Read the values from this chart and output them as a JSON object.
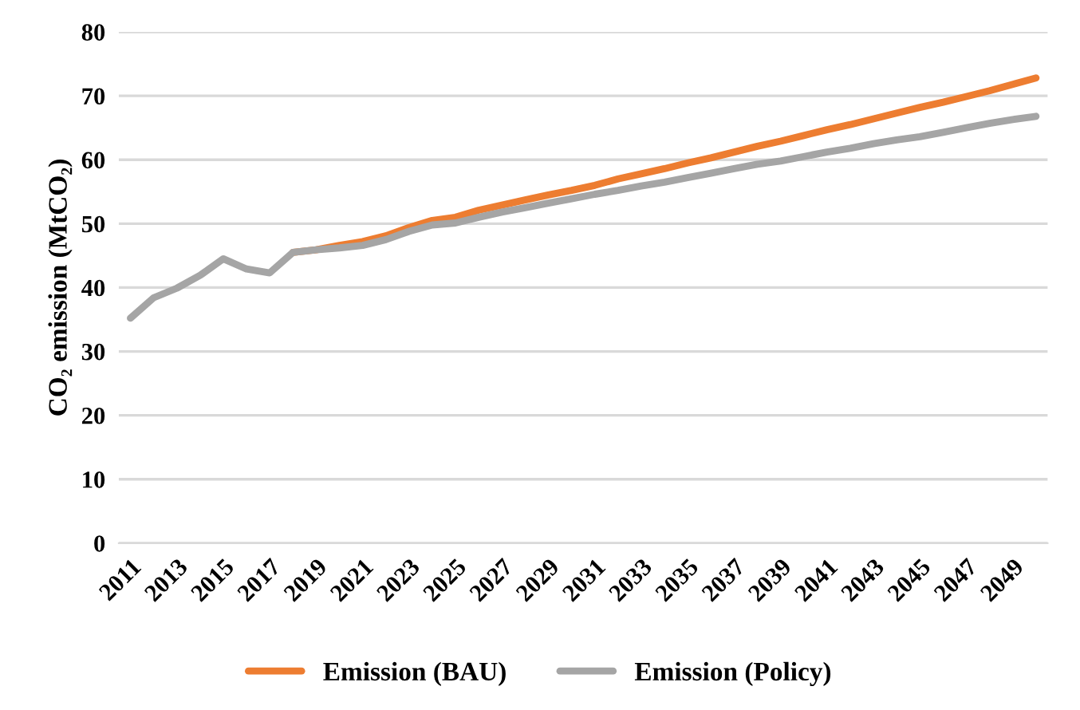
{
  "chart_data": {
    "type": "line",
    "ylabel": "CO₂ emission (MtCO₂)",
    "categories": [
      "2011",
      null,
      "2013",
      null,
      "2015",
      null,
      "2017",
      null,
      "2019",
      null,
      "2021",
      null,
      "2023",
      null,
      "2025",
      null,
      "2027",
      null,
      "2029",
      null,
      "2031",
      null,
      "2033",
      null,
      "2035",
      null,
      "2037",
      null,
      "2039",
      null,
      "2041",
      null,
      "2043",
      null,
      "2045",
      null,
      "2047",
      null,
      "2049",
      null
    ],
    "series": [
      {
        "name": "Emission (BAU)",
        "color": "#ed7d31",
        "values": [
          null,
          null,
          null,
          null,
          null,
          null,
          null,
          45.5,
          45.9,
          46.6,
          47.2,
          48.1,
          49.4,
          50.5,
          51.0,
          52.1,
          52.9,
          53.7,
          54.5,
          55.2,
          56.0,
          57.0,
          57.8,
          58.6,
          59.5,
          60.3,
          61.2,
          62.1,
          62.9,
          63.8,
          64.7,
          65.5,
          66.4,
          67.3,
          68.2,
          69.0,
          69.9,
          70.8,
          71.8,
          72.8
        ]
      },
      {
        "name": "Emission (Policy)",
        "color": "#a5a5a5",
        "values": [
          35.2,
          38.4,
          39.9,
          41.9,
          44.5,
          42.9,
          42.3,
          45.5,
          45.9,
          46.2,
          46.6,
          47.5,
          48.8,
          49.8,
          50.1,
          51.0,
          51.8,
          52.5,
          53.2,
          53.9,
          54.6,
          55.2,
          55.9,
          56.5,
          57.2,
          57.9,
          58.6,
          59.3,
          59.8,
          60.5,
          61.2,
          61.8,
          62.5,
          63.1,
          63.6,
          64.3,
          65.0,
          65.7,
          66.3,
          66.8
        ]
      }
    ],
    "ylim": [
      0,
      80
    ],
    "yticks": [
      0,
      10,
      20,
      30,
      40,
      50,
      60,
      70,
      80
    ],
    "grid": "y",
    "legend": "bottom",
    "marker": "none",
    "line_style": "solid"
  }
}
